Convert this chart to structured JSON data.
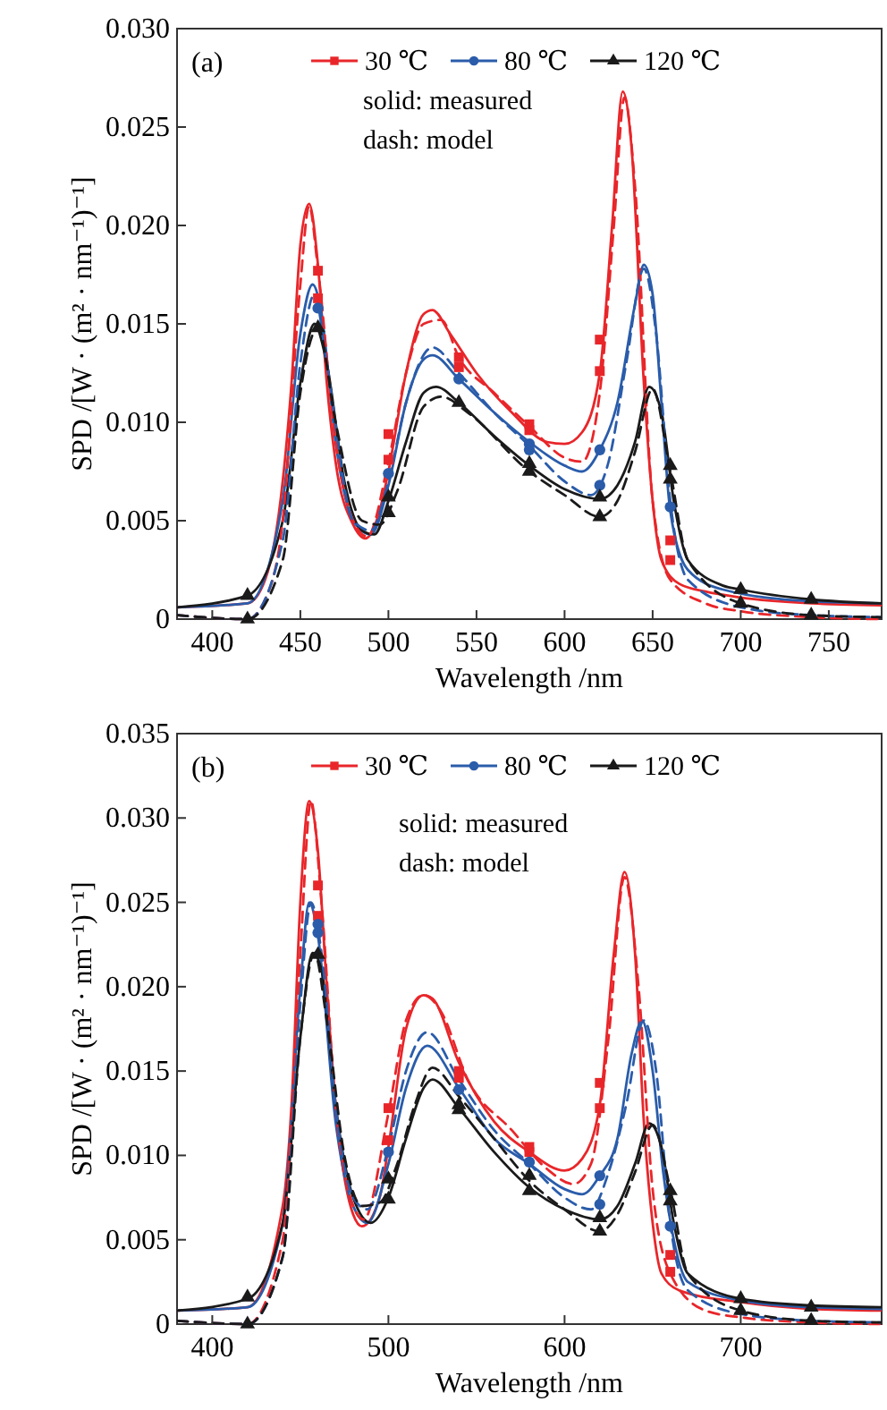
{
  "chart_data": [
    {
      "type": "line",
      "xlabel": "Wavelength /nm",
      "ylabel": "SPD /[W · (m² · nm⁻¹)⁻¹]",
      "xlim": [
        380,
        780
      ],
      "ylim": [
        0,
        0.03
      ],
      "xticks": [
        400,
        450,
        500,
        550,
        600,
        650,
        700,
        750
      ],
      "yticks": [
        0,
        0.005,
        {
          "value": 0.01,
          "label": "0.010"
        },
        0.015,
        {
          "value": 0.02,
          "label": "0.020"
        },
        0.025,
        {
          "value": 0.03,
          "label": "0.030"
        }
      ],
      "legend": "top",
      "grid": false,
      "annotations": [
        "(a)",
        "solid: measured",
        "dash: model"
      ],
      "series": [
        {
          "type": "line",
          "name": "30 ℃",
          "color": "#e8262a",
          "line_style": "solid",
          "marker": "none",
          "x": [
            380,
            420,
            430,
            440,
            445,
            450,
            455,
            460,
            465,
            470,
            480,
            487,
            495,
            500,
            510,
            520,
            525,
            535,
            550,
            570,
            590,
            600,
            610,
            620,
            627,
            633,
            638,
            645,
            650,
            655,
            665,
            680,
            700,
            740,
            780
          ],
          "values": [
            0.0006,
            0.0008,
            0.002,
            0.007,
            0.012,
            0.019,
            0.0211,
            0.018,
            0.012,
            0.008,
            0.0048,
            0.0041,
            0.0055,
            0.0075,
            0.0125,
            0.0155,
            0.0157,
            0.0145,
            0.0125,
            0.0105,
            0.009,
            0.0089,
            0.0095,
            0.0125,
            0.02,
            0.0268,
            0.024,
            0.012,
            0.006,
            0.003,
            0.0018,
            0.0014,
            0.0011,
            0.0008,
            0.0007
          ]
        },
        {
          "type": "line",
          "name": "80 ℃",
          "color": "#2a5caa",
          "line_style": "solid",
          "marker": "none",
          "x": [
            380,
            420,
            440,
            450,
            457,
            462,
            470,
            480,
            490,
            500,
            510,
            520,
            525,
            540,
            560,
            580,
            600,
            610,
            620,
            630,
            640,
            645,
            650,
            655,
            660,
            670,
            690,
            740,
            780
          ],
          "values": [
            0.0006,
            0.0008,
            0.006,
            0.0145,
            0.017,
            0.0155,
            0.009,
            0.005,
            0.0043,
            0.0068,
            0.011,
            0.0132,
            0.0134,
            0.0122,
            0.0105,
            0.009,
            0.0078,
            0.0075,
            0.0086,
            0.011,
            0.016,
            0.018,
            0.0165,
            0.011,
            0.0055,
            0.0025,
            0.0015,
            0.0009,
            0.0008
          ]
        },
        {
          "type": "line",
          "name": "120 ℃",
          "color": "#1a1a1a",
          "line_style": "solid",
          "marker": "none",
          "x": [
            380,
            420,
            440,
            450,
            458,
            465,
            475,
            485,
            492,
            500,
            510,
            520,
            527,
            540,
            560,
            580,
            600,
            620,
            630,
            640,
            648,
            655,
            662,
            670,
            690,
            700,
            740,
            780
          ],
          "values": [
            0.0006,
            0.0012,
            0.005,
            0.012,
            0.015,
            0.013,
            0.007,
            0.0045,
            0.0043,
            0.006,
            0.009,
            0.0115,
            0.0118,
            0.011,
            0.0093,
            0.0078,
            0.0066,
            0.0061,
            0.0068,
            0.009,
            0.0118,
            0.0105,
            0.006,
            0.003,
            0.0017,
            0.0015,
            0.001,
            0.0008
          ]
        },
        {
          "type": "line",
          "color": "#e8262a",
          "line_style": "dashed",
          "marker": "none",
          "x": [
            380,
            420,
            430,
            440,
            450,
            455,
            460,
            470,
            480,
            488,
            500,
            510,
            520,
            530,
            540,
            560,
            580,
            600,
            610,
            620,
            628,
            634,
            640,
            650,
            660,
            680,
            700,
            740,
            780
          ],
          "values": [
            0.0002,
            0,
            0.001,
            0.005,
            0.017,
            0.021,
            0.0178,
            0.009,
            0.005,
            0.0042,
            0.008,
            0.0125,
            0.015,
            0.0152,
            0.0133,
            0.0115,
            0.0098,
            0.0082,
            0.008,
            0.0115,
            0.02,
            0.0265,
            0.022,
            0.006,
            0.002,
            0.0008,
            0.0004,
            0.0001,
            0
          ]
        },
        {
          "type": "line",
          "color": "#2a5caa",
          "line_style": "dashed",
          "marker": "none",
          "x": [
            380,
            420,
            440,
            450,
            458,
            465,
            480,
            490,
            500,
            510,
            525,
            540,
            560,
            580,
            600,
            615,
            625,
            635,
            645,
            652,
            660,
            670,
            700,
            740,
            780
          ],
          "values": [
            0.0002,
            0,
            0.004,
            0.013,
            0.0165,
            0.013,
            0.005,
            0.0045,
            0.007,
            0.011,
            0.0138,
            0.0125,
            0.0105,
            0.0088,
            0.007,
            0.0063,
            0.008,
            0.013,
            0.0178,
            0.0145,
            0.006,
            0.002,
            0.0006,
            0.0002,
            0.0001
          ]
        },
        {
          "type": "line",
          "color": "#1a1a1a",
          "line_style": "dashed",
          "marker": "none",
          "x": [
            380,
            420,
            440,
            450,
            460,
            470,
            485,
            495,
            505,
            520,
            530,
            545,
            580,
            600,
            620,
            630,
            640,
            650,
            660,
            670,
            700,
            740,
            780
          ],
          "values": [
            0.0002,
            0,
            0.003,
            0.0115,
            0.0148,
            0.01,
            0.005,
            0.0048,
            0.0065,
            0.0108,
            0.0113,
            0.0105,
            0.0075,
            0.0063,
            0.0052,
            0.006,
            0.0085,
            0.0117,
            0.0075,
            0.003,
            0.0008,
            0.0002,
            0.0001
          ]
        },
        {
          "type": "scatter",
          "color": "#e8262a",
          "marker": "square",
          "x": [
            460,
            460,
            500,
            500,
            540,
            540,
            580,
            580,
            620,
            620,
            660,
            660
          ],
          "values": [
            0.0177,
            0.0163,
            0.0094,
            0.0081,
            0.0133,
            0.0128,
            0.0099,
            0.0096,
            0.0142,
            0.0126,
            0.004,
            0.003
          ]
        },
        {
          "type": "scatter",
          "color": "#2a5caa",
          "marker": "circle",
          "x": [
            460,
            500,
            540,
            580,
            580,
            620,
            620,
            660
          ],
          "values": [
            0.0158,
            0.0074,
            0.0122,
            0.0089,
            0.0086,
            0.0086,
            0.0068,
            0.0057
          ]
        },
        {
          "type": "scatter",
          "color": "#1a1a1a",
          "marker": "triangle",
          "x": [
            420,
            420,
            460,
            500,
            500,
            540,
            580,
            580,
            620,
            620,
            660,
            660,
            700,
            700,
            740,
            740
          ],
          "values": [
            0.0012,
            0,
            0.0148,
            0.0062,
            0.0054,
            0.011,
            0.0079,
            0.0075,
            0.0062,
            0.0052,
            0.0078,
            0.0071,
            0.0015,
            0.0008,
            0.001,
            0.0002
          ]
        }
      ]
    },
    {
      "type": "line",
      "xlabel": "Wavelength /nm",
      "ylabel": "SPD /[W · (m² · nm⁻¹)⁻¹]",
      "xlim": [
        380,
        780
      ],
      "ylim": [
        0,
        0.035
      ],
      "xticks": [
        400,
        500,
        600,
        700
      ],
      "yticks": [
        0,
        0.005,
        {
          "value": 0.01,
          "label": "0.010"
        },
        0.015,
        {
          "value": 0.02,
          "label": "0.020"
        },
        0.025,
        {
          "value": 0.03,
          "label": "0.030"
        },
        0.035
      ],
      "legend": "top",
      "grid": false,
      "annotations": [
        "(b)",
        "solid: measured",
        "dash: model"
      ],
      "series": [
        {
          "type": "line",
          "name": "30 ℃",
          "color": "#e8262a",
          "line_style": "solid",
          "marker": "none",
          "x": [
            380,
            420,
            440,
            445,
            450,
            455,
            460,
            465,
            470,
            480,
            485,
            495,
            500,
            510,
            520,
            525,
            540,
            560,
            580,
            600,
            610,
            620,
            628,
            634,
            640,
            645,
            650,
            655,
            665,
            700,
            740,
            780
          ],
          "values": [
            0.0008,
            0.001,
            0.007,
            0.013,
            0.025,
            0.031,
            0.028,
            0.02,
            0.013,
            0.0065,
            0.0058,
            0.0075,
            0.0105,
            0.0175,
            0.0195,
            0.0193,
            0.0155,
            0.012,
            0.0102,
            0.0091,
            0.0098,
            0.013,
            0.022,
            0.0268,
            0.022,
            0.012,
            0.006,
            0.003,
            0.002,
            0.0013,
            0.0009,
            0.0008
          ]
        },
        {
          "type": "line",
          "name": "80 ℃",
          "color": "#2a5caa",
          "line_style": "solid",
          "marker": "none",
          "x": [
            380,
            420,
            440,
            450,
            455,
            460,
            470,
            480,
            488,
            500,
            510,
            522,
            540,
            560,
            580,
            600,
            610,
            620,
            630,
            638,
            644,
            650,
            656,
            662,
            670,
            700,
            740,
            780
          ],
          "values": [
            0.0008,
            0.001,
            0.006,
            0.02,
            0.025,
            0.023,
            0.012,
            0.007,
            0.006,
            0.0095,
            0.014,
            0.0165,
            0.014,
            0.011,
            0.0095,
            0.008,
            0.0077,
            0.0088,
            0.011,
            0.016,
            0.018,
            0.015,
            0.009,
            0.005,
            0.0025,
            0.0014,
            0.001,
            0.0009
          ]
        },
        {
          "type": "line",
          "name": "120 ℃",
          "color": "#1a1a1a",
          "line_style": "solid",
          "marker": "none",
          "x": [
            380,
            420,
            440,
            450,
            457,
            462,
            470,
            480,
            490,
            500,
            510,
            520,
            525,
            540,
            560,
            580,
            600,
            620,
            630,
            640,
            648,
            655,
            662,
            670,
            700,
            740,
            780
          ],
          "values": [
            0.0008,
            0.0015,
            0.006,
            0.017,
            0.022,
            0.021,
            0.013,
            0.0075,
            0.006,
            0.0075,
            0.011,
            0.014,
            0.0145,
            0.0128,
            0.0102,
            0.0081,
            0.0068,
            0.0062,
            0.007,
            0.0095,
            0.0119,
            0.0105,
            0.006,
            0.003,
            0.0015,
            0.0011,
            0.001
          ]
        },
        {
          "type": "line",
          "color": "#e8262a",
          "line_style": "dashed",
          "marker": "none",
          "x": [
            380,
            420,
            440,
            450,
            456,
            462,
            470,
            480,
            486,
            500,
            510,
            520,
            530,
            545,
            570,
            590,
            605,
            615,
            625,
            634,
            642,
            650,
            660,
            680,
            700,
            740,
            780
          ],
          "values": [
            0.0002,
            0,
            0.005,
            0.022,
            0.031,
            0.025,
            0.013,
            0.007,
            0.0062,
            0.0125,
            0.018,
            0.0195,
            0.0185,
            0.0145,
            0.0115,
            0.0092,
            0.0083,
            0.0095,
            0.017,
            0.0265,
            0.02,
            0.008,
            0.003,
            0.0008,
            0.0004,
            0.0001,
            0
          ]
        },
        {
          "type": "line",
          "color": "#2a5caa",
          "line_style": "dashed",
          "marker": "none",
          "x": [
            380,
            420,
            440,
            450,
            456,
            462,
            470,
            480,
            488,
            500,
            510,
            522,
            540,
            560,
            580,
            600,
            615,
            625,
            635,
            645,
            652,
            660,
            670,
            700,
            740,
            780
          ],
          "values": [
            0.0002,
            0,
            0.004,
            0.019,
            0.025,
            0.022,
            0.013,
            0.0075,
            0.0068,
            0.0105,
            0.015,
            0.0173,
            0.0145,
            0.0115,
            0.0095,
            0.0075,
            0.0068,
            0.009,
            0.013,
            0.018,
            0.015,
            0.006,
            0.002,
            0.0006,
            0.0002,
            0.0001
          ]
        },
        {
          "type": "line",
          "color": "#1a1a1a",
          "line_style": "dashed",
          "marker": "none",
          "x": [
            380,
            420,
            440,
            450,
            458,
            465,
            475,
            485,
            495,
            505,
            515,
            525,
            540,
            560,
            580,
            600,
            620,
            630,
            640,
            650,
            660,
            670,
            700,
            740,
            780
          ],
          "values": [
            0.0002,
            0,
            0.004,
            0.017,
            0.022,
            0.018,
            0.01,
            0.007,
            0.0072,
            0.0095,
            0.013,
            0.0152,
            0.0135,
            0.011,
            0.0085,
            0.0068,
            0.0055,
            0.0065,
            0.009,
            0.0118,
            0.008,
            0.003,
            0.0008,
            0.0002,
            0.0001
          ]
        },
        {
          "type": "scatter",
          "color": "#e8262a",
          "marker": "square",
          "x": [
            460,
            460,
            500,
            500,
            540,
            540,
            580,
            580,
            620,
            620,
            660,
            660
          ],
          "values": [
            0.026,
            0.0242,
            0.0128,
            0.0109,
            0.015,
            0.0146,
            0.0105,
            0.0102,
            0.0143,
            0.0128,
            0.0041,
            0.0031
          ]
        },
        {
          "type": "scatter",
          "color": "#2a5caa",
          "marker": "circle",
          "x": [
            460,
            460,
            500,
            540,
            580,
            620,
            620,
            660
          ],
          "values": [
            0.0237,
            0.0232,
            0.0102,
            0.0139,
            0.0096,
            0.0088,
            0.0071,
            0.0058
          ]
        },
        {
          "type": "scatter",
          "color": "#1a1a1a",
          "marker": "triangle",
          "x": [
            420,
            420,
            460,
            500,
            500,
            540,
            540,
            580,
            580,
            620,
            620,
            660,
            660,
            700,
            700,
            740,
            740
          ],
          "values": [
            0.0016,
            0,
            0.0219,
            0.0086,
            0.0074,
            0.013,
            0.0127,
            0.0088,
            0.0079,
            0.0063,
            0.0055,
            0.0079,
            0.0073,
            0.0015,
            0.0008,
            0.001,
            0.0002
          ]
        }
      ]
    }
  ]
}
